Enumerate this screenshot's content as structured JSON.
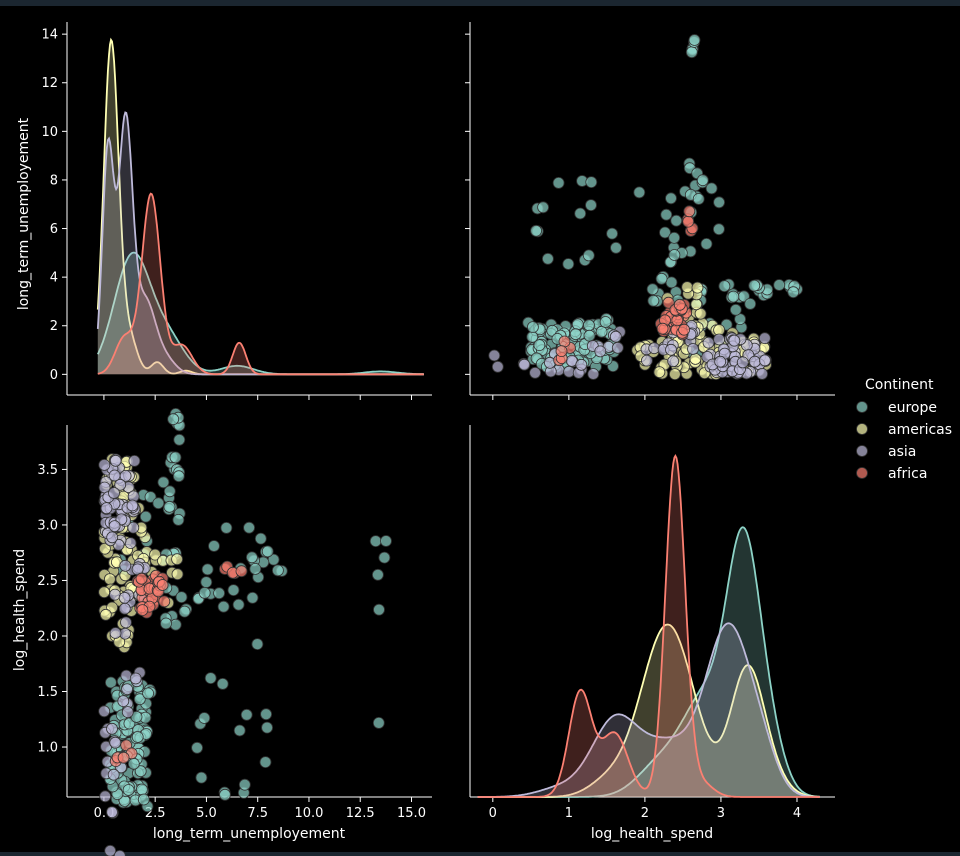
{
  "chart_data": {
    "type": "pairplot",
    "variables": [
      "long_term_unemployement",
      "log_health_spend"
    ],
    "hue": "Continent",
    "legend": {
      "title": "Continent",
      "placement": "right",
      "entries": [
        {
          "name": "europe",
          "color": "#8dd3c7"
        },
        {
          "name": "americas",
          "color": "#ffffb3"
        },
        {
          "name": "asia",
          "color": "#bebada"
        },
        {
          "name": "africa",
          "color": "#fb8072"
        }
      ]
    },
    "axes": {
      "long_term_unemployement": {
        "label": "long_term_unemployement",
        "lim": [
          -1.8,
          16.0
        ],
        "ticks_diag": [
          0,
          2,
          4,
          6,
          8,
          10,
          12,
          14
        ],
        "ticks_x": [
          0.0,
          2.5,
          5.0,
          7.5,
          10.0,
          12.5,
          15.0
        ],
        "tick_labels_x": [
          "0.0",
          "2.5",
          "5.0",
          "7.5",
          "10.0",
          "12.5",
          "15.0"
        ]
      },
      "log_health_spend": {
        "label": "log_health_spend",
        "lim": [
          -0.3,
          4.5
        ],
        "ticks_x": [
          0,
          1,
          2,
          3,
          4
        ],
        "ticks_y": [
          1.0,
          1.5,
          2.0,
          2.5,
          3.0,
          3.5
        ],
        "tick_labels_y": [
          "1.0",
          "1.5",
          "2.0",
          "2.5",
          "3.0",
          "3.5"
        ]
      },
      "log_health_spend_scatter_y": {
        "lim": [
          0.55,
          3.9
        ]
      }
    },
    "kde_long_term_unemployement": [
      {
        "name": "europe",
        "peaks": [
          [
            1.4,
            4.9,
            0.9
          ],
          [
            3.2,
            1.3,
            0.8
          ],
          [
            6.5,
            0.35,
            0.8
          ],
          [
            13.5,
            0.12,
            0.8
          ]
        ]
      },
      {
        "name": "americas",
        "peaks": [
          [
            0.35,
            13.6,
            0.36
          ],
          [
            1.2,
            1.6,
            0.4
          ],
          [
            2.6,
            0.5,
            0.3
          ],
          [
            4.0,
            0.15,
            0.3
          ]
        ]
      },
      {
        "name": "asia",
        "peaks": [
          [
            0.2,
            9.2,
            0.28
          ],
          [
            1.05,
            10.2,
            0.34
          ],
          [
            2.0,
            3.0,
            0.5
          ],
          [
            3.0,
            0.6,
            0.5
          ]
        ]
      },
      {
        "name": "africa",
        "peaks": [
          [
            1.0,
            1.5,
            0.45
          ],
          [
            2.3,
            7.4,
            0.45
          ],
          [
            3.8,
            1.2,
            0.5
          ],
          [
            6.6,
            1.3,
            0.32
          ]
        ]
      }
    ],
    "kde_log_health_spend": [
      {
        "name": "europe",
        "peaks": [
          [
            2.2,
            0.35,
            0.3
          ],
          [
            2.8,
            1.05,
            0.3
          ],
          [
            3.3,
            2.6,
            0.22
          ],
          [
            3.65,
            0.5,
            0.2
          ]
        ]
      },
      {
        "name": "americas",
        "peaks": [
          [
            1.5,
            0.15,
            0.25
          ],
          [
            2.3,
            1.9,
            0.35
          ],
          [
            3.35,
            1.4,
            0.22
          ],
          [
            3.7,
            0.15,
            0.2
          ]
        ]
      },
      {
        "name": "asia",
        "peaks": [
          [
            0.9,
            0.1,
            0.3
          ],
          [
            1.6,
            0.82,
            0.3
          ],
          [
            2.3,
            0.55,
            0.35
          ],
          [
            3.1,
            1.85,
            0.3
          ],
          [
            3.55,
            0.3,
            0.2
          ]
        ]
      },
      {
        "name": "africa",
        "peaks": [
          [
            1.15,
            1.15,
            0.15
          ],
          [
            1.6,
            0.7,
            0.18
          ],
          [
            2.4,
            3.75,
            0.13
          ],
          [
            2.75,
            0.15,
            0.15
          ]
        ]
      }
    ],
    "scatter_clusters": [
      {
        "name": "europe",
        "clusters": [
          [
            0.3,
            2.3,
            1.6,
            0.45,
            3.0,
            3.7,
            120
          ],
          [
            3.0,
            3.7,
            4.0,
            2.0,
            2.3,
            3.5,
            30
          ],
          [
            4.2,
            8.0,
            0.5,
            3.0,
            2.3,
            3.0,
            25
          ],
          [
            12.8,
            13.6,
            0.3,
            2.8,
            2.6,
            2.75,
            3
          ],
          [
            12.3,
            14.0,
            2.7,
            2.9,
            2.6,
            2.75,
            3
          ],
          [
            7.5,
            8.8,
            2.2,
            2.7,
            2.55,
            2.7,
            3
          ],
          [
            6.5,
            8.0,
            2.6,
            3.0,
            2.7,
            3.0,
            4
          ],
          [
            7.0,
            8.0,
            2.5,
            2.9,
            2.7,
            2.9,
            3
          ],
          [
            0.5,
            3.0,
            2.4,
            3.4,
            2.0,
            2.6,
            12
          ],
          [
            3.0,
            6.0,
            2.2,
            2.5,
            2.3,
            2.6,
            10
          ]
        ]
      },
      {
        "name": "americas",
        "clusters": [
          [
            0.0,
            1.5,
            1.9,
            3.6,
            0.0,
            0.5,
            70
          ],
          [
            0.5,
            2.5,
            2.4,
            3.2,
            0.2,
            1.2,
            14
          ],
          [
            1.5,
            3.5,
            2.5,
            3.0,
            2.3,
            3.3,
            8
          ],
          [
            3.0,
            3.7,
            2.2,
            2.7,
            2.3,
            2.6,
            4
          ]
        ]
      },
      {
        "name": "asia",
        "clusters": [
          [
            0.0,
            1.0,
            0.0,
            1.0,
            0.0,
            0.5,
            6
          ],
          [
            0.0,
            0.6,
            0.7,
            1.8,
            0.0,
            0.5,
            10
          ],
          [
            0.0,
            1.5,
            2.8,
            3.6,
            0.0,
            1.0,
            60
          ],
          [
            0.5,
            1.5,
            2.0,
            2.5,
            1.3,
            1.8,
            8
          ],
          [
            1.0,
            2.0,
            2.3,
            2.7,
            0.5,
            1.5,
            10
          ],
          [
            0.8,
            1.8,
            1.3,
            1.7,
            1.5,
            2.5,
            8
          ]
        ]
      },
      {
        "name": "africa",
        "clusters": [
          [
            1.5,
            3.0,
            2.2,
            2.55,
            1.9,
            2.7,
            28
          ],
          [
            0.3,
            1.5,
            0.85,
            1.25,
            0.3,
            1.0,
            5
          ],
          [
            5.8,
            6.8,
            2.55,
            2.65,
            2.0,
            2.6,
            5
          ],
          [
            2.5,
            3.0,
            2.4,
            2.5,
            2.2,
            2.8,
            6
          ]
        ]
      }
    ]
  }
}
